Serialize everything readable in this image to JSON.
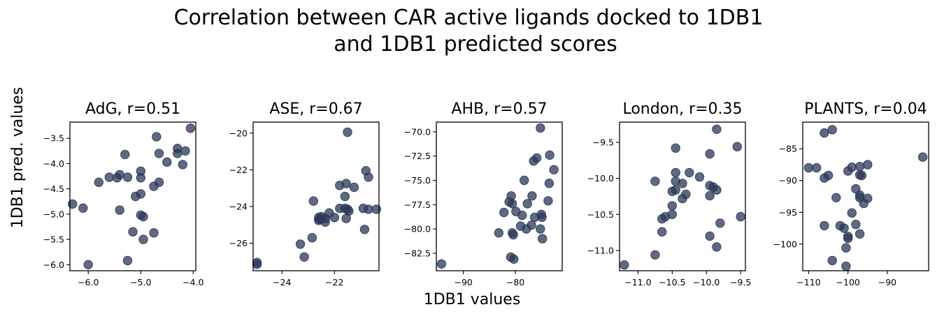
{
  "figure": {
    "title_line1": "Correlation between CAR active ligands docked to 1DB1",
    "title_line2": "and 1DB1 predicted scores",
    "xlabel": "1DB1 values",
    "ylabel": "1DB1 pred. values"
  },
  "colors": {
    "marker": "#2a3858"
  },
  "chart_data": [
    {
      "type": "scatter",
      "title": "AdG, r=0.51",
      "xlim": [
        -6.35,
        -3.95
      ],
      "ylim": [
        -6.12,
        -3.18
      ],
      "xticks": [
        -6,
        -5,
        -4
      ],
      "yticks": [
        -6.0,
        -5.5,
        -5.0,
        -4.5,
        -4.0,
        -3.5
      ],
      "tick_decimals": 1,
      "points": [
        [
          -4.05,
          -3.3
        ],
        [
          -4.7,
          -3.47
        ],
        [
          -4.3,
          -3.7
        ],
        [
          -4.15,
          -3.75
        ],
        [
          -4.3,
          -3.8
        ],
        [
          -4.65,
          -3.8
        ],
        [
          -5.3,
          -3.82
        ],
        [
          -4.5,
          -3.97
        ],
        [
          -4.2,
          -4.02
        ],
        [
          -5.0,
          -4.15
        ],
        [
          -5.4,
          -4.22
        ],
        [
          -5.6,
          -4.27
        ],
        [
          -5.25,
          -4.27
        ],
        [
          -5.45,
          -4.28
        ],
        [
          -5.0,
          -4.28
        ],
        [
          -5.8,
          -4.37
        ],
        [
          -4.65,
          -4.37
        ],
        [
          -4.75,
          -4.45
        ],
        [
          -5.0,
          -4.6
        ],
        [
          -5.1,
          -4.65
        ],
        [
          -6.3,
          -4.8
        ],
        [
          -6.1,
          -4.88
        ],
        [
          -5.4,
          -4.92
        ],
        [
          -5.0,
          -5.02
        ],
        [
          -4.95,
          -5.05
        ],
        [
          -5.15,
          -5.35
        ],
        [
          -4.75,
          -5.37
        ],
        [
          -4.95,
          -5.5
        ],
        [
          -5.25,
          -5.92
        ],
        [
          -6.0,
          -6.0
        ]
      ]
    },
    {
      "type": "scatter",
      "title": "ASE, r=0.67",
      "xlim": [
        -25.1,
        -20.3
      ],
      "ylim": [
        -27.5,
        -19.4
      ],
      "xticks": [
        -24,
        -22
      ],
      "yticks": [
        -26,
        -24,
        -22,
        -20
      ],
      "tick_decimals": 0,
      "points": [
        [
          -21.5,
          -19.95
        ],
        [
          -20.8,
          -22.05
        ],
        [
          -20.7,
          -22.4
        ],
        [
          -21.55,
          -22.75
        ],
        [
          -21.8,
          -22.85
        ],
        [
          -21.25,
          -22.95
        ],
        [
          -21.6,
          -23.45
        ],
        [
          -22.8,
          -23.7
        ],
        [
          -20.9,
          -24.1
        ],
        [
          -21.6,
          -24.1
        ],
        [
          -21.8,
          -24.1
        ],
        [
          -21.5,
          -24.15
        ],
        [
          -20.7,
          -24.15
        ],
        [
          -20.4,
          -24.15
        ],
        [
          -21.45,
          -24.25
        ],
        [
          -22.2,
          -24.35
        ],
        [
          -22.0,
          -24.6
        ],
        [
          -22.5,
          -24.55
        ],
        [
          -22.35,
          -24.65
        ],
        [
          -21.55,
          -24.65
        ],
        [
          -22.6,
          -24.6
        ],
        [
          -22.55,
          -24.7
        ],
        [
          -22.6,
          -24.75
        ],
        [
          -22.35,
          -24.85
        ],
        [
          -20.85,
          -25.25
        ],
        [
          -22.85,
          -25.7
        ],
        [
          -23.3,
          -26.05
        ],
        [
          -23.15,
          -26.75
        ],
        [
          -24.95,
          -27.05
        ],
        [
          -24.95,
          -27.15
        ]
      ]
    },
    {
      "type": "scatter",
      "title": "AHB, r=0.57",
      "xlim": [
        -95.2,
        -71.0
      ],
      "ylim": [
        -84.3,
        -69.0
      ],
      "xticks": [
        -90,
        -80
      ],
      "yticks": [
        -82.5,
        -80.0,
        -77.5,
        -75.0,
        -72.5,
        -70.0
      ],
      "tick_decimals": 1,
      "points": [
        [
          -75.2,
          -69.6
        ],
        [
          -73.4,
          -72.4
        ],
        [
          -75.9,
          -72.7
        ],
        [
          -76.5,
          -73.0
        ],
        [
          -72.6,
          -73.9
        ],
        [
          -78.3,
          -75.0
        ],
        [
          -73.5,
          -75.3
        ],
        [
          -80.8,
          -76.6
        ],
        [
          -76.8,
          -76.6
        ],
        [
          -81.2,
          -77.2
        ],
        [
          -80.6,
          -77.4
        ],
        [
          -73.7,
          -77.1
        ],
        [
          -77.7,
          -77.4
        ],
        [
          -79.9,
          -78.2
        ],
        [
          -75.0,
          -78.5
        ],
        [
          -82.2,
          -78.3
        ],
        [
          -78.7,
          -78.6
        ],
        [
          -76.3,
          -78.8
        ],
        [
          -74.9,
          -78.8
        ],
        [
          -79.0,
          -79.7
        ],
        [
          -80.6,
          -80.4
        ],
        [
          -76.9,
          -79.6
        ],
        [
          -80.4,
          -80.6
        ],
        [
          -75.2,
          -80.0
        ],
        [
          -77.9,
          -80.0
        ],
        [
          -83.2,
          -80.4
        ],
        [
          -74.8,
          -81.0
        ],
        [
          -80.9,
          -82.9
        ],
        [
          -80.3,
          -83.1
        ],
        [
          -94.2,
          -83.6
        ]
      ]
    },
    {
      "type": "scatter",
      "title": "London, r=0.35",
      "xlim": [
        -11.27,
        -9.43
      ],
      "ylim": [
        -11.28,
        -9.22
      ],
      "xticks": [
        -11.0,
        -10.5,
        -10.0,
        -9.5
      ],
      "yticks": [
        -11.0,
        -10.5,
        -10.0,
        -9.5
      ],
      "tick_decimals": 1,
      "points": [
        [
          -9.85,
          -9.32
        ],
        [
          -9.55,
          -9.56
        ],
        [
          -10.45,
          -9.58
        ],
        [
          -9.95,
          -9.66
        ],
        [
          -10.45,
          -9.92
        ],
        [
          -10.25,
          -9.92
        ],
        [
          -10.1,
          -9.98
        ],
        [
          -10.75,
          -10.04
        ],
        [
          -10.45,
          -10.04
        ],
        [
          -10.35,
          -10.07
        ],
        [
          -9.95,
          -10.1
        ],
        [
          -9.9,
          -10.12
        ],
        [
          -9.85,
          -10.16
        ],
        [
          -10.45,
          -10.16
        ],
        [
          -10.5,
          -10.18
        ],
        [
          -10.3,
          -10.22
        ],
        [
          -10.35,
          -10.28
        ],
        [
          -9.95,
          -10.24
        ],
        [
          -10.5,
          -10.38
        ],
        [
          -10.5,
          -10.5
        ],
        [
          -10.6,
          -10.53
        ],
        [
          -10.65,
          -10.56
        ],
        [
          -9.5,
          -10.53
        ],
        [
          -9.8,
          -10.62
        ],
        [
          -10.65,
          -10.74
        ],
        [
          -9.95,
          -10.8
        ],
        [
          -9.85,
          -10.95
        ],
        [
          -10.75,
          -11.06
        ],
        [
          -11.2,
          -11.2
        ]
      ]
    },
    {
      "type": "scatter",
      "title": "PLANTS, r=0.04",
      "xlim": [
        -111.5,
        -79.5
      ],
      "ylim": [
        -104.2,
        -80.8
      ],
      "xticks": [
        -110,
        -100,
        -90
      ],
      "yticks": [
        -100,
        -95,
        -90,
        -85
      ],
      "tick_decimals": 0,
      "points": [
        [
          -104.0,
          -82.0
        ],
        [
          -106.0,
          -82.5
        ],
        [
          -81.0,
          -86.3
        ],
        [
          -95.0,
          -87.5
        ],
        [
          -97.0,
          -87.8
        ],
        [
          -99.0,
          -87.9
        ],
        [
          -110.0,
          -88.0
        ],
        [
          -108.0,
          -88.0
        ],
        [
          -100.0,
          -88.5
        ],
        [
          -97.0,
          -89.1
        ],
        [
          -96.5,
          -89.2
        ],
        [
          -105.0,
          -89.2
        ],
        [
          -106.0,
          -89.6
        ],
        [
          -98.0,
          -91.3
        ],
        [
          -97.0,
          -92.3
        ],
        [
          -97.0,
          -92.7
        ],
        [
          -103.0,
          -92.7
        ],
        [
          -95.0,
          -92.8
        ],
        [
          -96.0,
          -93.6
        ],
        [
          -99.0,
          -95.1
        ],
        [
          -106.0,
          -97.1
        ],
        [
          -98.0,
          -96.9
        ],
        [
          -102.0,
          -97.1
        ],
        [
          -101.0,
          -97.5
        ],
        [
          -97.0,
          -98.4
        ],
        [
          -100.0,
          -99.1
        ],
        [
          -100.0,
          -98.8
        ],
        [
          -100.5,
          -100.6
        ],
        [
          -104.0,
          -102.6
        ],
        [
          -100.5,
          -103.5
        ]
      ]
    }
  ]
}
